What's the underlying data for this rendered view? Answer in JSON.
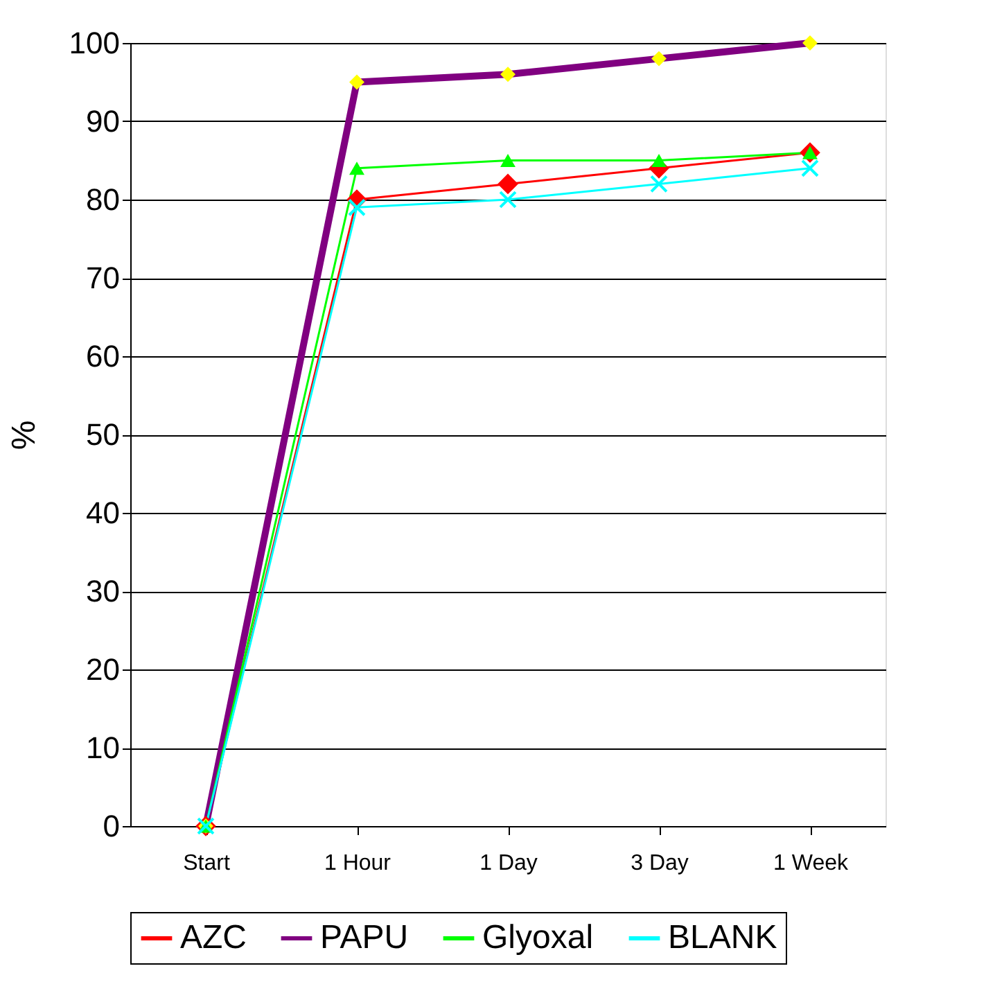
{
  "chart_data": {
    "type": "line",
    "ylabel": "%",
    "categories": [
      "Start",
      "1 Hour",
      "1 Day",
      "3 Day",
      "1 Week"
    ],
    "series": [
      {
        "name": "AZC",
        "color": "#ff0000",
        "marker": "diamond",
        "values": [
          0,
          80,
          82,
          84,
          86
        ]
      },
      {
        "name": "PAPU",
        "color": "#800080",
        "marker": "diamond",
        "values": [
          0,
          95,
          96,
          98,
          100
        ]
      },
      {
        "name": "Glyoxal",
        "color": "#00ff00",
        "marker": "triangle",
        "values": [
          0,
          84,
          85,
          85,
          86
        ]
      },
      {
        "name": "BLANK",
        "color": "#00ffff",
        "marker": "cross",
        "values": [
          0,
          79,
          80,
          82,
          84
        ]
      }
    ],
    "ylim": [
      0,
      100
    ],
    "yticks": [
      0,
      10,
      20,
      30,
      40,
      50,
      60,
      70,
      80,
      90,
      100
    ],
    "grid": "y",
    "legend": "bottom",
    "line_style": "solid"
  }
}
